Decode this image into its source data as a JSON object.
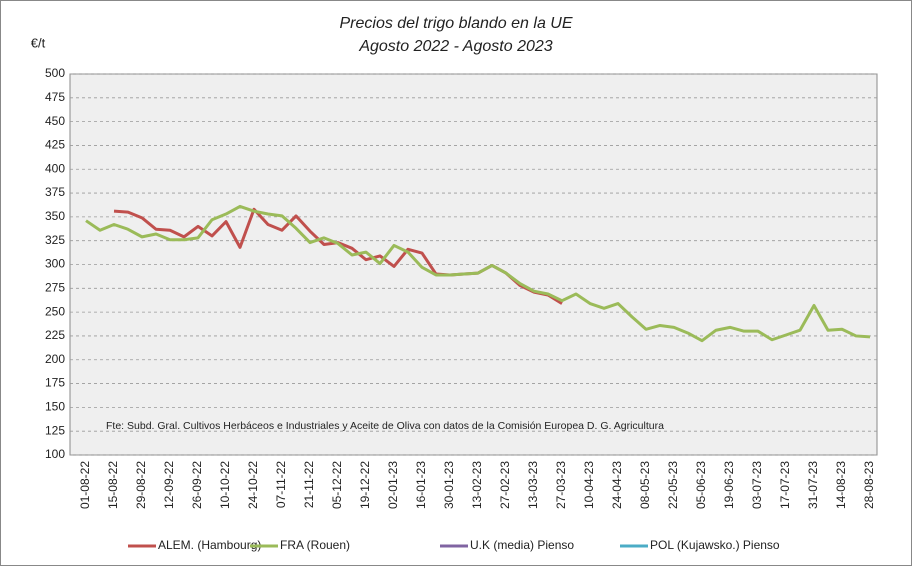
{
  "chart_data": {
    "type": "line",
    "title": "Precios del trigo blando en la UE",
    "subtitle": "Agosto 2022 - Agosto 2023",
    "y_label": "€/t",
    "note": "Fte: Subd. Gral. Cultivos Herbáceos e Industriales y Aceite de Oliva con  datos de la Comisión Europea D. G. Agricultura",
    "categories": [
      "01-08-22",
      null,
      "15-08-22",
      null,
      "29-08-22",
      null,
      "12-09-22",
      null,
      "26-09-22",
      null,
      "10-10-22",
      null,
      "24-10-22",
      null,
      "07-11-22",
      null,
      "21-11-22",
      null,
      "05-12-22",
      null,
      "19-12-22",
      null,
      "02-01-23",
      null,
      "16-01-23",
      null,
      "30-01-23",
      null,
      "13-02-23",
      null,
      "27-02-23",
      null,
      "13-03-23",
      null,
      "27-03-23",
      null,
      "10-04-23",
      null,
      "24-04-23",
      null,
      "08-05-23",
      null,
      "22-05-23",
      null,
      "05-06-23",
      null,
      "19-06-23",
      null,
      "03-07-23",
      null,
      "17-07-23",
      null,
      "31-07-23",
      null,
      "14-08-23",
      null,
      "28-08-23"
    ],
    "series": [
      {
        "name": "ALEM. (Hambourg)",
        "color": "#c0504d",
        "values": [
          null,
          null,
          356,
          355,
          349,
          337,
          336,
          329,
          340,
          330,
          345,
          318,
          358,
          342,
          336,
          351,
          335,
          321,
          323,
          317,
          305,
          309,
          298,
          316,
          312,
          290,
          289,
          290,
          291,
          299,
          291,
          278,
          271,
          268,
          259,
          null,
          null,
          null,
          null,
          null,
          null,
          null,
          null,
          null,
          null,
          null,
          null,
          null,
          null,
          null,
          null,
          null,
          null,
          null,
          null,
          null,
          null
        ]
      },
      {
        "name": "FRA (Rouen)",
        "color": "#9bbb59",
        "values": [
          346,
          336,
          342,
          337,
          329,
          332,
          326,
          326,
          328,
          347,
          353,
          361,
          356,
          353,
          351,
          338,
          323,
          328,
          322,
          310,
          313,
          301,
          320,
          313,
          297,
          289,
          289,
          290,
          291,
          299,
          291,
          280,
          272,
          269,
          262,
          269,
          259,
          254,
          259,
          245,
          232,
          236,
          234,
          228,
          220,
          231,
          234,
          230,
          230,
          221,
          226,
          231,
          257,
          231,
          232,
          225,
          224
        ]
      },
      {
        "name": "U.K (media) Pienso",
        "color": "#8064a2",
        "values": [
          null,
          null,
          null,
          null,
          null,
          null,
          null,
          null,
          null,
          null,
          null,
          null,
          null,
          null,
          null,
          null,
          null,
          null,
          null,
          null,
          null,
          null,
          null,
          null,
          null,
          null,
          null,
          null,
          null,
          null,
          null,
          null,
          null,
          null,
          null,
          null,
          null,
          null,
          null,
          null,
          null,
          null,
          null,
          null,
          null,
          null,
          null,
          null,
          null,
          null,
          null,
          null,
          null,
          null,
          null,
          null,
          null
        ]
      },
      {
        "name": "POL (Kujawsko.) Pienso",
        "color": "#4bacc6",
        "values": [
          null,
          null,
          null,
          null,
          null,
          null,
          null,
          null,
          null,
          null,
          null,
          null,
          null,
          null,
          null,
          null,
          null,
          null,
          null,
          null,
          null,
          null,
          null,
          null,
          null,
          null,
          null,
          null,
          null,
          null,
          null,
          null,
          null,
          null,
          null,
          null,
          null,
          null,
          null,
          null,
          null,
          null,
          null,
          null,
          null,
          null,
          null,
          null,
          null,
          null,
          null,
          null,
          null,
          null,
          null,
          null,
          null
        ]
      }
    ],
    "ylim": [
      100,
      500
    ],
    "yticks": [
      100,
      125,
      150,
      175,
      200,
      225,
      250,
      275,
      300,
      325,
      350,
      375,
      400,
      425,
      450,
      475,
      500
    ],
    "grid": true
  }
}
